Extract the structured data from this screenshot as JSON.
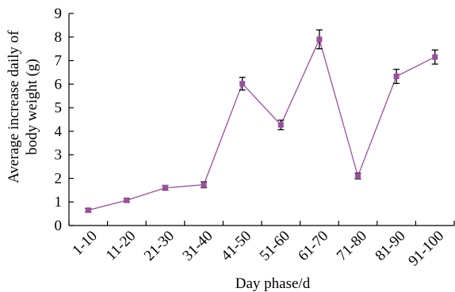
{
  "chart_data": {
    "type": "line",
    "categories": [
      "1-10",
      "11-20",
      "21-30",
      "31-40",
      "41-50",
      "51-60",
      "61-70",
      "71-80",
      "81-90",
      "91-100"
    ],
    "series": [
      {
        "values": [
          0.65,
          1.07,
          1.6,
          1.73,
          6.02,
          4.27,
          7.9,
          2.1,
          6.33,
          7.15
        ],
        "errors": [
          0.07,
          0.08,
          0.1,
          0.12,
          0.27,
          0.2,
          0.4,
          0.12,
          0.3,
          0.3
        ],
        "color": "#9b4f9e"
      }
    ],
    "xlabel": "Day phase/d",
    "ylabel_lines": [
      "Average increase daily of",
      "body weight (g)"
    ],
    "ylim": [
      0,
      9
    ],
    "yticks": [
      0,
      1,
      2,
      3,
      4,
      5,
      6,
      7,
      8,
      9
    ],
    "grid": false,
    "legend": "none"
  }
}
